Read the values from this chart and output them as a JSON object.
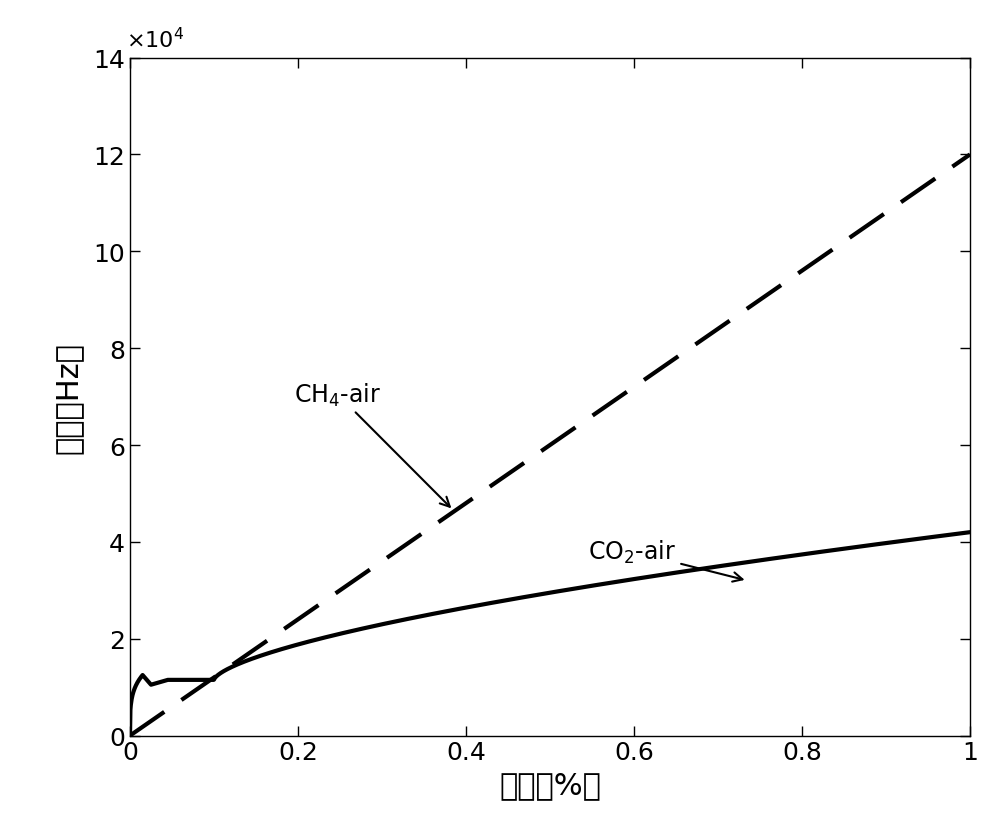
{
  "title": "",
  "xlabel": "浓度（%）",
  "ylabel": "频率（Hz）",
  "xlim": [
    0,
    1.0
  ],
  "ylim": [
    0,
    140000
  ],
  "yticks": [
    0,
    20000,
    40000,
    60000,
    80000,
    100000,
    120000,
    140000
  ],
  "ytick_labels": [
    "0",
    "2",
    "4",
    "6",
    "8",
    "10",
    "12",
    "14"
  ],
  "xticks": [
    0,
    0.2,
    0.4,
    0.6,
    0.8,
    1.0
  ],
  "xtick_labels": [
    "0",
    "0.2",
    "0.4",
    "0.6",
    "0.8",
    "1"
  ],
  "ch4_label": "CH$_4$-air",
  "co2_label": "CO$_2$-air",
  "background_color": "#ffffff",
  "line_color": "#000000",
  "linewidth": 3.0,
  "dpi": 100,
  "figsize": [
    10.0,
    8.37
  ]
}
